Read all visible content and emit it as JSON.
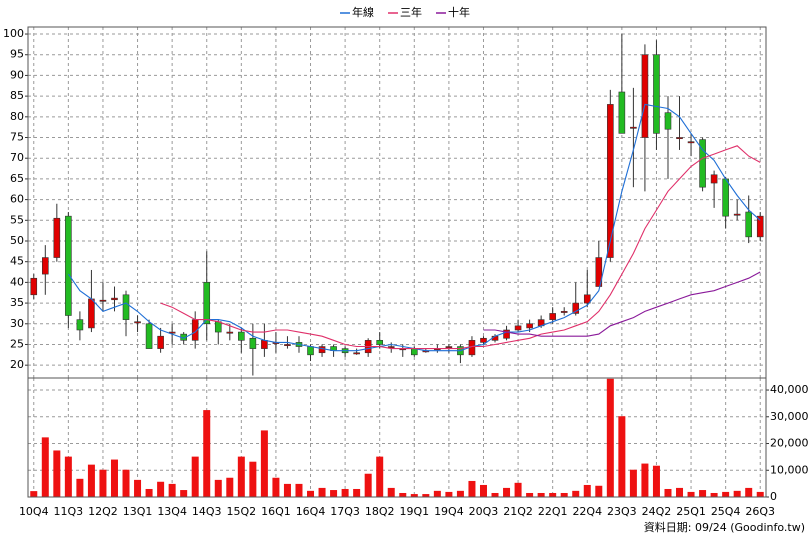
{
  "chart_data": [
    {
      "type": "candlestick",
      "legend": "top",
      "grid": true,
      "up_color": "#e00000",
      "down_color": "#22bb22",
      "ylim": [
        16.9,
        101.7
      ],
      "yticks": [
        20,
        25,
        30,
        35,
        40,
        45,
        50,
        55,
        60,
        65,
        70,
        75,
        80,
        85,
        90,
        95,
        100
      ],
      "open": [
        37,
        42,
        46,
        56,
        31,
        29,
        35.5,
        35.8,
        37,
        30.5,
        30,
        24,
        28,
        27.5,
        26,
        40,
        30.5,
        28,
        28,
        26.5,
        24,
        25.5,
        25,
        25.5,
        24.5,
        23,
        24.5,
        24,
        23,
        23,
        26,
        24.5,
        24,
        24,
        23.5,
        24,
        24.5,
        24.5,
        22.5,
        25.5,
        26,
        26.5,
        28.5,
        29,
        29.5,
        31,
        33,
        32.5,
        35,
        39,
        46,
        86,
        77.5,
        75,
        95,
        81,
        75,
        74,
        74.5,
        64,
        65,
        56.5,
        57,
        51
      ],
      "high": [
        42,
        49,
        59,
        57,
        33,
        43,
        40,
        39,
        38,
        32,
        31,
        29,
        30,
        28,
        33,
        47.5,
        31,
        30,
        29,
        30,
        30,
        28,
        27,
        27,
        25,
        25,
        25,
        24.5,
        24,
        26.5,
        28,
        25.5,
        25,
        24.5,
        24,
        25,
        25,
        25,
        27,
        27,
        27.5,
        29.5,
        31,
        31,
        32,
        34,
        34,
        40,
        43,
        50,
        86.5,
        100,
        87,
        97.5,
        98.5,
        85,
        85,
        76,
        75,
        67,
        65.5,
        60,
        61,
        57
      ],
      "low": [
        36,
        37,
        45,
        29,
        26,
        28,
        33,
        33,
        27,
        28,
        24,
        23,
        25,
        25,
        24,
        26,
        25,
        26,
        23,
        17.5,
        22,
        23,
        24,
        23,
        21,
        22,
        22,
        22,
        22.5,
        22,
        24,
        23,
        22,
        22,
        23,
        23,
        23,
        20.5,
        22,
        25,
        25.5,
        26,
        28,
        28,
        29,
        30,
        32,
        32,
        34,
        39,
        45,
        76,
        63,
        62,
        72,
        65,
        72,
        70.5,
        62,
        58,
        53,
        55,
        49.5,
        50
      ],
      "close": [
        41,
        46,
        55.5,
        32,
        28.5,
        36,
        35.7,
        36.2,
        31,
        30.5,
        24,
        27,
        28,
        26,
        31,
        30,
        28,
        28,
        26,
        24,
        26,
        25.5,
        25,
        24.5,
        22.5,
        24.5,
        23.5,
        23,
        23,
        26,
        25,
        24.5,
        24,
        22.5,
        23.5,
        24,
        24.5,
        22.5,
        26,
        26.5,
        27,
        28.5,
        29.5,
        30,
        31,
        32.5,
        33,
        35,
        37,
        46,
        83,
        76,
        77.5,
        95,
        76,
        77,
        75,
        74,
        63,
        66,
        56,
        56.5,
        51,
        56
      ],
      "series": [
        {
          "name": "年線",
          "color": "#1f6fd6",
          "values": [
            null,
            null,
            null,
            42,
            38,
            36,
            33,
            34,
            35,
            33,
            30.5,
            28.5,
            27.5,
            26.5,
            28,
            31,
            31,
            30.5,
            29,
            27,
            26,
            25.5,
            25.5,
            25,
            24.5,
            24,
            23.5,
            23.5,
            23.5,
            24,
            24.5,
            25,
            24.5,
            24,
            23.5,
            23.5,
            23.5,
            23.5,
            24.5,
            25,
            27,
            28,
            28,
            28.5,
            29.5,
            30.5,
            31.5,
            33,
            34.5,
            38,
            50,
            62,
            72,
            83,
            82.5,
            82,
            80,
            76,
            72,
            69.5,
            65,
            61,
            57.5,
            55
          ]
        },
        {
          "name": "三年",
          "color": "#e0306a",
          "values": [
            null,
            null,
            null,
            null,
            null,
            null,
            null,
            null,
            null,
            null,
            null,
            35,
            34,
            32.5,
            31,
            31,
            30.5,
            29.5,
            28.5,
            28,
            28,
            28.5,
            28.5,
            28,
            27.5,
            27,
            26,
            25,
            24.5,
            24.5,
            24.5,
            24,
            24,
            24,
            24,
            24,
            24,
            24,
            24.5,
            24.5,
            25,
            25.5,
            26,
            26.5,
            27.5,
            28,
            28.5,
            29.5,
            30.5,
            33,
            37,
            42,
            47,
            53,
            57.5,
            62,
            65,
            68,
            70,
            71,
            72,
            73,
            70.5,
            69
          ]
        },
        {
          "name": "十年",
          "color": "#8a1a9a",
          "values": [
            null,
            null,
            null,
            null,
            null,
            null,
            null,
            null,
            null,
            null,
            null,
            null,
            null,
            null,
            null,
            null,
            null,
            null,
            null,
            null,
            null,
            null,
            null,
            null,
            null,
            null,
            null,
            null,
            null,
            null,
            null,
            null,
            null,
            null,
            null,
            null,
            null,
            null,
            null,
            28.5,
            28.5,
            28,
            27.5,
            27.5,
            27,
            27,
            27,
            27,
            27,
            27.5,
            29.5,
            30.5,
            31.5,
            33,
            34,
            35,
            36,
            37,
            37.5,
            38,
            39,
            40,
            41,
            42.5
          ]
        }
      ]
    },
    {
      "type": "bar",
      "color": "#ee1111",
      "grid": true,
      "categories": [
        "10Q4",
        null,
        null,
        "11Q3",
        null,
        null,
        "12Q2",
        null,
        null,
        "13Q1",
        null,
        null,
        "13Q4",
        null,
        null,
        "14Q3",
        null,
        null,
        "15Q2",
        null,
        null,
        "16Q1",
        null,
        null,
        "16Q4",
        null,
        null,
        "17Q3",
        null,
        null,
        "18Q2",
        null,
        null,
        "19Q1",
        null,
        null,
        "19Q4",
        null,
        null,
        "20Q3",
        null,
        null,
        "21Q2",
        null,
        null,
        "22Q1",
        null,
        null,
        "22Q4",
        null,
        null,
        "23Q3",
        null,
        null,
        "24Q2",
        null,
        null,
        "25Q1",
        null,
        null,
        "25Q4",
        null,
        null,
        "26Q3"
      ],
      "values": [
        2200,
        22300,
        17400,
        15100,
        6800,
        12100,
        10200,
        14000,
        10200,
        6400,
        3000,
        5700,
        4900,
        2600,
        15100,
        32500,
        6400,
        7200,
        15100,
        13200,
        24900,
        7200,
        4900,
        4900,
        2300,
        3400,
        2600,
        3000,
        3000,
        8700,
        15100,
        3400,
        1500,
        1100,
        1100,
        2300,
        1900,
        2300,
        6000,
        4500,
        1500,
        3400,
        5300,
        1500,
        1500,
        1500,
        1500,
        2300,
        4500,
        4200,
        44200,
        30200,
        10200,
        12500,
        11700,
        3000,
        3400,
        1900,
        2600,
        1500,
        1900,
        2300,
        3400,
        1900
      ],
      "ylim": [
        0,
        44500
      ],
      "yticks": [
        0,
        {
          "value": 10000,
          "label": "10,000"
        },
        {
          "value": 20000,
          "label": "20,000"
        },
        {
          "value": 30000,
          "label": "30,000"
        },
        {
          "value": 40000,
          "label": "40,000"
        }
      ]
    }
  ],
  "source_note": "資料日期: 09/24 (Goodinfo.tw)"
}
